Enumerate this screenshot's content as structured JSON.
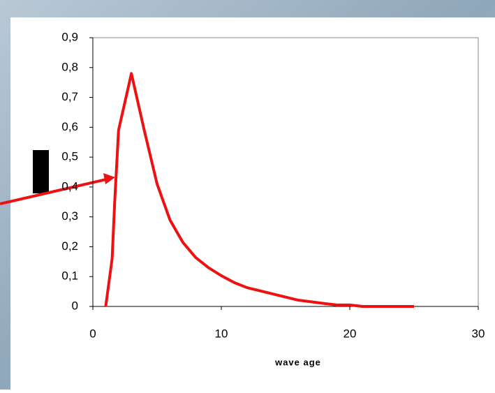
{
  "chart_data": {
    "type": "line",
    "xlabel": "wave age",
    "x": [
      1,
      1.5,
      1.7,
      2,
      3,
      4,
      5,
      6,
      7,
      8,
      9,
      10,
      11,
      12,
      14,
      16,
      18,
      19,
      20,
      21,
      25
    ],
    "series": [
      {
        "color": "#ee1111",
        "values": [
          0,
          0.16,
          0.35,
          0.59,
          0.78,
          0.59,
          0.41,
          0.29,
          0.215,
          0.164,
          0.13,
          0.103,
          0.08,
          0.063,
          0.042,
          0.021,
          0.01,
          0.005,
          0.005,
          0,
          0
        ]
      }
    ],
    "xlim": [
      0,
      30
    ],
    "xticks": [
      0,
      10,
      20,
      30
    ],
    "ylim": [
      0,
      0.9
    ],
    "yticks": [
      0,
      {
        "value": 0.1,
        "label": "0,1"
      },
      {
        "value": 0.2,
        "label": "0,2"
      },
      {
        "value": 0.3,
        "label": "0,3"
      },
      {
        "value": 0.4,
        "label": "0,4"
      },
      {
        "value": 0.5,
        "label": "0,5"
      },
      {
        "value": 0.6,
        "label": "0,6"
      },
      {
        "value": 0.7,
        "label": "0,7"
      },
      {
        "value": 0.8,
        "label": "0,8"
      },
      {
        "value": 0.9,
        "label": "0,9"
      }
    ],
    "grid": false
  }
}
